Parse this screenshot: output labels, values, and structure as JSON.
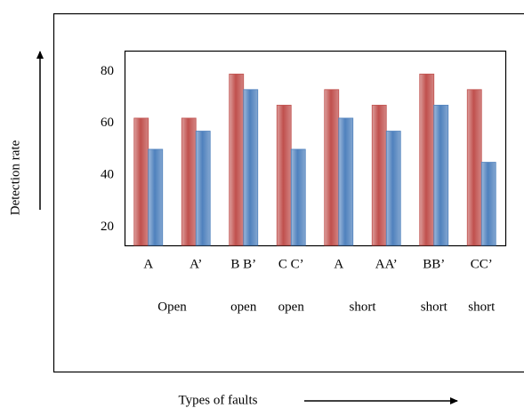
{
  "chart_data": {
    "type": "bar",
    "y_label": "Detection rate",
    "x_label": "Types of faults",
    "categories": [
      "A",
      "A’",
      "B B’",
      "C C’",
      "A",
      "AA’",
      "BB’",
      "CC’"
    ],
    "category_sublabels": [
      "Open",
      null,
      "open",
      "open",
      "short",
      null,
      "short",
      "short"
    ],
    "series": [
      {
        "color": "#c0504d",
        "values": [
          62,
          62,
          79,
          67,
          73,
          67,
          79,
          73
        ]
      },
      {
        "color": "#4f81bd",
        "values": [
          50,
          57,
          73,
          50,
          62,
          57,
          67,
          45
        ]
      }
    ],
    "ylim": [
      13,
      88
    ],
    "yticks": [
      20,
      40,
      60,
      80
    ],
    "grid": false
  }
}
